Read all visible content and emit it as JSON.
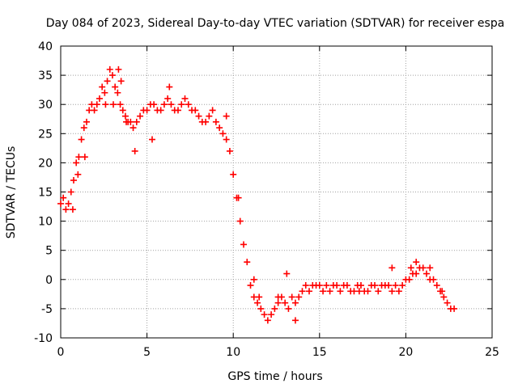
{
  "chart_data": {
    "type": "scatter",
    "title": "Day 084 of 2023, Sidereal Day-to-day VTEC variation (SDTVAR) for receiver espa",
    "xlabel": "GPS time / hours",
    "ylabel": "SDTVAR / TECUs",
    "xlim": [
      0,
      25
    ],
    "ylim": [
      -10,
      40
    ],
    "xticks": [
      0,
      5,
      10,
      15,
      20,
      25
    ],
    "yticks": [
      -10,
      -5,
      0,
      5,
      10,
      15,
      20,
      25,
      30,
      35,
      40
    ],
    "grid": true,
    "marker": "+",
    "series": [
      {
        "name": "SDTVAR",
        "color": "#ff0000",
        "x": [
          0.0,
          0.15,
          0.3,
          0.45,
          0.6,
          0.75,
          0.9,
          1.05,
          1.2,
          1.35,
          1.5,
          1.65,
          1.8,
          1.95,
          2.1,
          2.25,
          2.4,
          2.55,
          2.7,
          2.85,
          3.0,
          3.15,
          3.3,
          3.45,
          3.6,
          3.75,
          3.9,
          4.05,
          4.2,
          4.4,
          4.6,
          4.8,
          5.0,
          5.2,
          5.4,
          5.6,
          5.8,
          6.0,
          6.2,
          6.4,
          6.6,
          6.8,
          7.0,
          7.2,
          7.4,
          7.6,
          7.8,
          8.0,
          8.2,
          8.4,
          8.6,
          8.8,
          9.0,
          9.2,
          9.4,
          9.6,
          9.8,
          10.0,
          10.2,
          10.4,
          10.6,
          10.8,
          11.0,
          11.2,
          11.4,
          11.6,
          11.8,
          12.0,
          12.2,
          12.4,
          12.6,
          12.8,
          13.0,
          13.2,
          13.4,
          13.6,
          13.8,
          14.0,
          14.2,
          14.4,
          14.6,
          14.8,
          15.0,
          15.2,
          15.4,
          15.6,
          15.8,
          16.0,
          16.2,
          16.4,
          16.6,
          16.8,
          17.0,
          17.2,
          17.4,
          17.6,
          17.8,
          18.0,
          18.2,
          18.4,
          18.6,
          18.8,
          19.0,
          19.2,
          19.4,
          19.6,
          19.8,
          20.0,
          20.2,
          20.4,
          20.6,
          20.8,
          21.0,
          21.2,
          21.4,
          21.6,
          21.8,
          22.0,
          22.2,
          22.4,
          22.6,
          22.8,
          3.05,
          3.35,
          4.3,
          5.3,
          6.3,
          9.6,
          10.3,
          11.2,
          11.5,
          12.6,
          13.6,
          13.1,
          17.3,
          19.2,
          20.3,
          20.6,
          21.4,
          22.1,
          0.7,
          1.0,
          1.4,
          2.6,
          3.5,
          3.8
        ],
        "y": [
          13,
          14,
          12,
          13,
          15,
          17,
          20,
          21,
          24,
          26,
          27,
          29,
          30,
          29,
          30,
          31,
          33,
          32,
          34,
          36,
          35,
          33,
          32,
          30,
          29,
          28,
          27,
          27,
          26,
          27,
          28,
          29,
          29,
          30,
          30,
          29,
          29,
          30,
          31,
          30,
          29,
          29,
          30,
          31,
          30,
          29,
          29,
          28,
          27,
          27,
          28,
          29,
          27,
          26,
          25,
          24,
          22,
          18,
          14,
          10,
          6,
          3,
          -1,
          -3,
          -4,
          -5,
          -6,
          -7,
          -6,
          -5,
          -4,
          -3,
          -4,
          -5,
          -3,
          -4,
          -3,
          -2,
          -1,
          -2,
          -1,
          -1,
          -1,
          -2,
          -1,
          -2,
          -1,
          -1,
          -2,
          -1,
          -1,
          -2,
          -2,
          -1,
          -1,
          -2,
          -2,
          -1,
          -1,
          -2,
          -1,
          -1,
          -1,
          -2,
          -1,
          -2,
          -1,
          0,
          0,
          1,
          1,
          2,
          2,
          1,
          0,
          0,
          -1,
          -2,
          -3,
          -4,
          -5,
          -5,
          30,
          36,
          22,
          24,
          33,
          28,
          14,
          0,
          -3,
          -3,
          -7,
          1,
          -2,
          2,
          2,
          3,
          2,
          -2,
          12,
          18,
          21,
          30,
          34,
          27
        ]
      }
    ]
  }
}
